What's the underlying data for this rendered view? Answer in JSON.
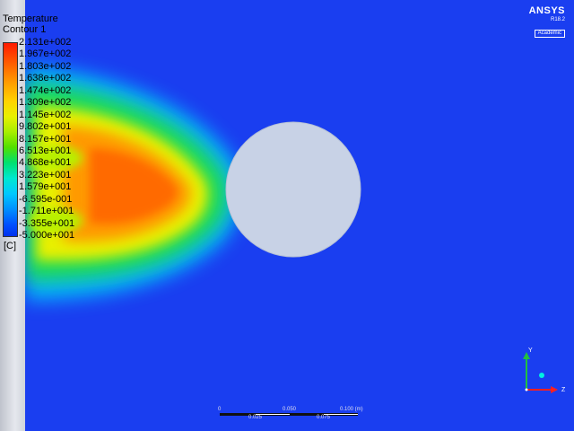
{
  "legend": {
    "title": "Temperature",
    "subtitle": "Contour 1",
    "unit": "[C]",
    "labels": [
      "2.131e+002",
      "1.967e+002",
      "1.803e+002",
      "1.638e+002",
      "1.474e+002",
      "1.309e+002",
      "1.145e+002",
      "9.802e+001",
      "8.157e+001",
      "6.513e+001",
      "4.868e+001",
      "3.223e+001",
      "1.579e+001",
      "-6.595e-001",
      "-1.711e+001",
      "-3.355e+001",
      "-5.000e+001"
    ]
  },
  "brand": {
    "name": "ANSYS",
    "version": "R18.2",
    "edition": "Academic"
  },
  "axes": {
    "y_label": "Y",
    "z_label": "Z"
  },
  "scale": {
    "zero": "0",
    "mid": "0.050",
    "max": "0.100 (m)",
    "q1": "0.025",
    "q3": "0.075"
  },
  "colors": {
    "background": "#1a3ef0",
    "cylinder": "#c8d2e6",
    "y_axis": "#22c040",
    "z_axis": "#ff2020"
  }
}
